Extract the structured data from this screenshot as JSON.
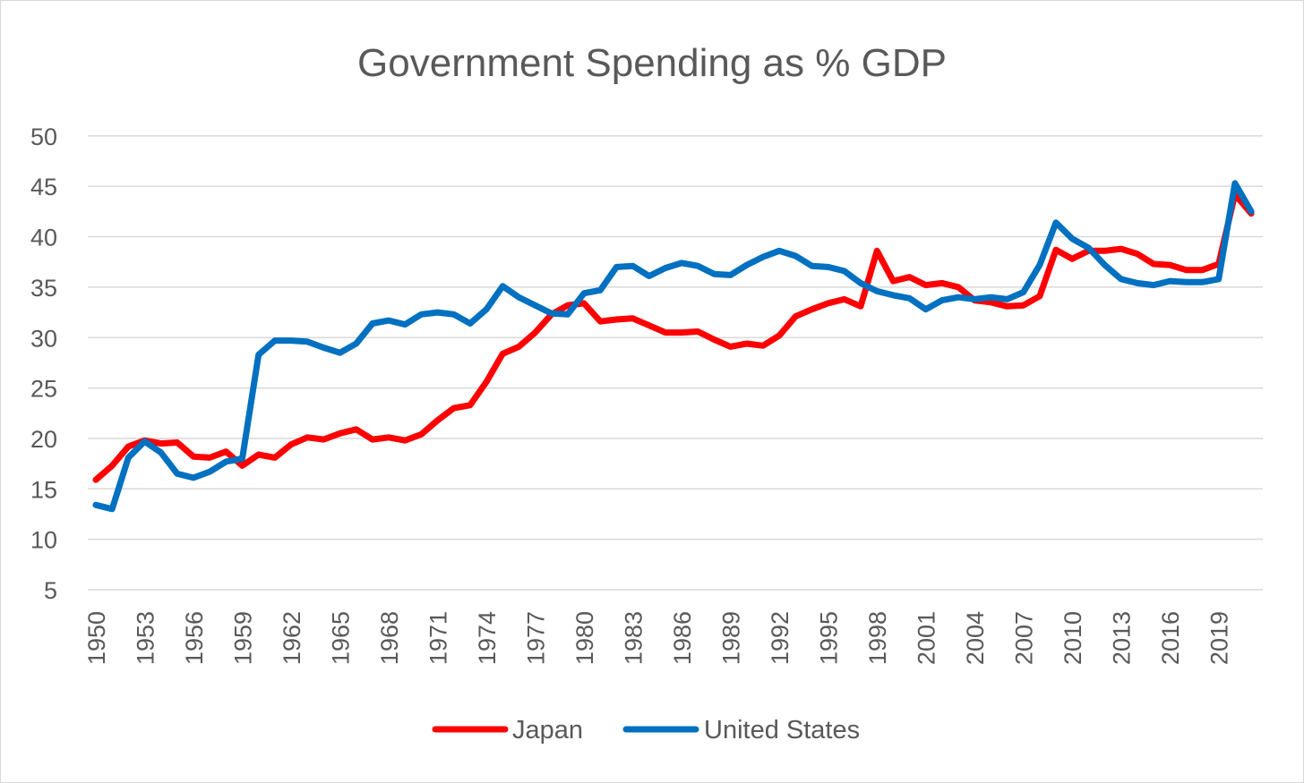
{
  "chart_data": {
    "type": "line",
    "title": "Government Spending as % GDP",
    "xlabel": "",
    "ylabel": "",
    "ylim": [
      5,
      50
    ],
    "yticks": [
      "5",
      "10",
      "15",
      "20",
      "25",
      "30",
      "35",
      "40",
      "45",
      "50"
    ],
    "xtick_labels": [
      "1950",
      "1953",
      "1956",
      "1959",
      "1962",
      "1965",
      "1968",
      "1971",
      "1974",
      "1977",
      "1980",
      "1983",
      "1986",
      "1989",
      "1992",
      "1995",
      "1998",
      "2001",
      "2004",
      "2007",
      "2010",
      "2013",
      "2016",
      "2019"
    ],
    "x": [
      1950,
      1951,
      1952,
      1953,
      1954,
      1955,
      1956,
      1957,
      1958,
      1959,
      1960,
      1961,
      1962,
      1963,
      1964,
      1965,
      1966,
      1967,
      1968,
      1969,
      1970,
      1971,
      1972,
      1973,
      1974,
      1975,
      1976,
      1977,
      1978,
      1979,
      1980,
      1981,
      1982,
      1983,
      1984,
      1985,
      1986,
      1987,
      1988,
      1989,
      1990,
      1991,
      1992,
      1993,
      1994,
      1995,
      1996,
      1997,
      1998,
      1999,
      2000,
      2001,
      2002,
      2003,
      2004,
      2005,
      2006,
      2007,
      2008,
      2009,
      2010,
      2011,
      2012,
      2013,
      2014,
      2015,
      2016,
      2017,
      2018,
      2019,
      2020,
      2021
    ],
    "series": [
      {
        "name": "Japan",
        "color": "#ff0000",
        "values": [
          15.9,
          17.3,
          19.2,
          19.8,
          19.5,
          19.6,
          18.2,
          18.1,
          18.7,
          17.3,
          18.4,
          18.1,
          19.4,
          20.1,
          19.9,
          20.5,
          20.9,
          19.9,
          20.1,
          19.8,
          20.4,
          21.8,
          23.0,
          23.3,
          25.6,
          28.4,
          29.1,
          30.5,
          32.3,
          33.2,
          33.4,
          31.6,
          31.8,
          31.9,
          31.2,
          30.5,
          30.5,
          30.6,
          29.8,
          29.1,
          29.4,
          29.2,
          30.2,
          32.1,
          32.8,
          33.4,
          33.8,
          33.1,
          38.6,
          35.6,
          36.0,
          35.2,
          35.4,
          35.0,
          33.7,
          33.5,
          33.1,
          33.2,
          34.1,
          38.7,
          37.8,
          38.6,
          38.6,
          38.8,
          38.3,
          37.3,
          37.2,
          36.7,
          36.7,
          37.3,
          44.2,
          42.3
        ]
      },
      {
        "name": "United States",
        "color": "#0070c0",
        "values": [
          13.4,
          13.0,
          18.1,
          19.7,
          18.6,
          16.5,
          16.1,
          16.7,
          17.7,
          18.0,
          28.3,
          29.7,
          29.7,
          29.6,
          29.0,
          28.5,
          29.4,
          31.4,
          31.7,
          31.3,
          32.3,
          32.5,
          32.3,
          31.4,
          32.8,
          35.1,
          34.0,
          33.2,
          32.4,
          32.3,
          34.4,
          34.7,
          37.0,
          37.1,
          36.1,
          36.9,
          37.4,
          37.1,
          36.3,
          36.2,
          37.2,
          38.0,
          38.6,
          38.1,
          37.1,
          37.0,
          36.6,
          35.4,
          34.6,
          34.2,
          33.9,
          32.8,
          33.7,
          34.0,
          33.8,
          34.0,
          33.8,
          34.5,
          37.2,
          41.4,
          39.8,
          38.9,
          37.2,
          35.8,
          35.4,
          35.2,
          35.6,
          35.5,
          35.5,
          35.8,
          45.3,
          42.5
        ]
      }
    ],
    "legend_position": "bottom",
    "grid": true
  }
}
